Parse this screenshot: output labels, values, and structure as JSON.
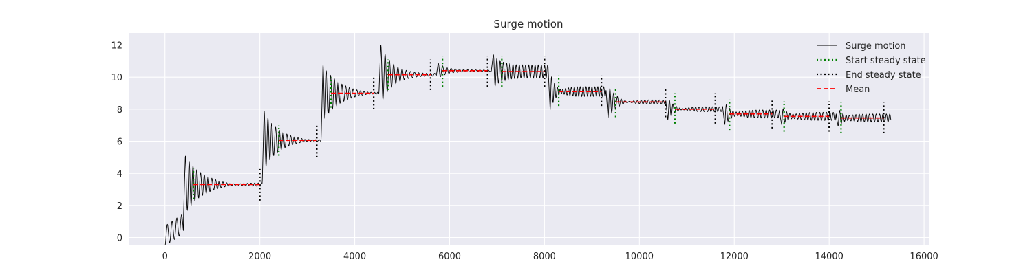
{
  "chart_data": {
    "type": "line",
    "title": "Surge motion",
    "xlabel": "",
    "ylabel": "",
    "xlim": [
      -750,
      16100
    ],
    "ylim": [
      -0.45,
      12.75
    ],
    "x_ticks": [
      0,
      2000,
      4000,
      6000,
      8000,
      10000,
      12000,
      14000,
      16000
    ],
    "y_ticks": [
      0,
      2,
      4,
      6,
      8,
      10,
      12
    ],
    "grid": true,
    "legend_position": "top-right",
    "colors": {
      "background": "#eaeaf2",
      "grid": "#ffffff",
      "surge": "#000000",
      "start": "#008000",
      "end": "#000000",
      "mean": "#ff0000"
    },
    "legend": [
      {
        "label": "Surge motion",
        "style": "solid",
        "color": "#000000"
      },
      {
        "label": "Start steady state",
        "style": "dotted",
        "color": "#008000"
      },
      {
        "label": "End steady state",
        "style": "dotted",
        "color": "#000000"
      },
      {
        "label": "Mean",
        "style": "dashed",
        "color": "#ff0000"
      }
    ],
    "series": [
      {
        "name": "Surge motion",
        "start_x": 0,
        "end_x": 15300,
        "initial_segment": {
          "x_start": 0,
          "x_end": 400,
          "y_start": 0.1,
          "y_mid": 0.9,
          "amplitude": 0.65,
          "period": 100
        },
        "steps": [
          {
            "x_step": 390,
            "y_before": 1.2,
            "peak": 5.2,
            "y_mean": 3.3,
            "decay_amp": 1.6,
            "period": 80,
            "decay_len": 700,
            "residual_amp": 0.1
          },
          {
            "x_step": 2050,
            "y_before": 3.4,
            "peak": 8.0,
            "y_mean": 6.05,
            "decay_amp": 1.3,
            "period": 80,
            "decay_len": 600,
            "residual_amp": 0.08
          },
          {
            "x_step": 3290,
            "y_before": 6.1,
            "peak": 10.9,
            "y_mean": 9.0,
            "decay_amp": 1.1,
            "period": 80,
            "decay_len": 650,
            "residual_amp": 0.1
          },
          {
            "x_step": 4510,
            "y_before": 9.0,
            "peak": 12.1,
            "y_mean": 10.15,
            "decay_amp": 0.9,
            "period": 90,
            "decay_len": 500,
            "residual_amp": 0.1
          },
          {
            "x_step": 5720,
            "y_before": 10.1,
            "peak": 10.9,
            "y_mean": 10.4,
            "decay_amp": 0.45,
            "period": 90,
            "decay_len": 400,
            "residual_amp": 0.05
          },
          {
            "x_step": 6880,
            "y_before": 10.4,
            "peak": 11.4,
            "y_mean": 10.35,
            "decay_amp": 0.6,
            "period": 70,
            "decay_len": 300,
            "residual_amp": 0.4
          },
          {
            "x_step": 8080,
            "y_before": 10.3,
            "peak": 7.9,
            "y_mean": 9.1,
            "decay_amp": 0.8,
            "period": 65,
            "decay_len": 300,
            "residual_amp": 0.3
          },
          {
            "x_step": 9300,
            "y_before": 9.1,
            "peak": 7.4,
            "y_mean": 8.45,
            "decay_amp": 0.7,
            "period": 80,
            "decay_len": 500,
            "residual_amp": 0.12
          },
          {
            "x_step": 10560,
            "y_before": 8.45,
            "peak": 7.3,
            "y_mean": 8.0,
            "decay_amp": 0.5,
            "period": 75,
            "decay_len": 400,
            "residual_amp": 0.15
          },
          {
            "x_step": 11760,
            "y_before": 8.0,
            "peak": 7.0,
            "y_mean": 7.7,
            "decay_amp": 0.6,
            "period": 75,
            "decay_len": 400,
            "residual_amp": 0.25
          },
          {
            "x_step": 12960,
            "y_before": 7.7,
            "peak": 7.0,
            "y_mean": 7.55,
            "decay_amp": 0.5,
            "period": 75,
            "decay_len": 400,
            "residual_amp": 0.25
          },
          {
            "x_step": 14150,
            "y_before": 7.55,
            "peak": 6.9,
            "y_mean": 7.45,
            "decay_amp": 0.5,
            "period": 75,
            "decay_len": 300,
            "residual_amp": 0.25
          }
        ]
      },
      {
        "name": "Start steady state",
        "lines": [
          {
            "x": 600,
            "ymin": 2.4,
            "ymax": 4.3
          },
          {
            "x": 2400,
            "ymin": 5.1,
            "ymax": 7.0
          },
          {
            "x": 3500,
            "ymin": 8.1,
            "ymax": 10.0
          },
          {
            "x": 4700,
            "ymin": 9.2,
            "ymax": 11.1
          },
          {
            "x": 5850,
            "ymin": 9.4,
            "ymax": 11.3
          },
          {
            "x": 7100,
            "ymin": 9.4,
            "ymax": 11.3
          },
          {
            "x": 8300,
            "ymin": 8.2,
            "ymax": 10.1
          },
          {
            "x": 9500,
            "ymin": 7.5,
            "ymax": 9.4
          },
          {
            "x": 10750,
            "ymin": 7.1,
            "ymax": 9.0
          },
          {
            "x": 11900,
            "ymin": 6.7,
            "ymax": 8.6
          },
          {
            "x": 13050,
            "ymin": 6.6,
            "ymax": 8.5
          },
          {
            "x": 14250,
            "ymin": 6.5,
            "ymax": 8.4
          }
        ]
      },
      {
        "name": "End steady state",
        "lines": [
          {
            "x": 2000,
            "ymin": 2.3,
            "ymax": 4.3
          },
          {
            "x": 3200,
            "ymin": 5.0,
            "ymax": 7.0
          },
          {
            "x": 4400,
            "ymin": 8.0,
            "ymax": 10.0
          },
          {
            "x": 5600,
            "ymin": 9.2,
            "ymax": 11.1
          },
          {
            "x": 6800,
            "ymin": 9.4,
            "ymax": 11.3
          },
          {
            "x": 8000,
            "ymin": 9.4,
            "ymax": 11.3
          },
          {
            "x": 9200,
            "ymin": 8.2,
            "ymax": 10.1
          },
          {
            "x": 10550,
            "ymin": 7.5,
            "ymax": 9.4
          },
          {
            "x": 11600,
            "ymin": 7.1,
            "ymax": 9.0
          },
          {
            "x": 12800,
            "ymin": 6.8,
            "ymax": 8.6
          },
          {
            "x": 14000,
            "ymin": 6.6,
            "ymax": 8.5
          },
          {
            "x": 15150,
            "ymin": 6.5,
            "ymax": 8.4
          }
        ]
      },
      {
        "name": "Mean",
        "segments": [
          {
            "x_start": 600,
            "x_end": 2000,
            "y": 3.3
          },
          {
            "x_start": 2400,
            "x_end": 3200,
            "y": 6.05
          },
          {
            "x_start": 3500,
            "x_end": 4400,
            "y": 9.0
          },
          {
            "x_start": 4700,
            "x_end": 5600,
            "y": 10.15
          },
          {
            "x_start": 5850,
            "x_end": 6800,
            "y": 10.4
          },
          {
            "x_start": 7100,
            "x_end": 8000,
            "y": 10.35
          },
          {
            "x_start": 8300,
            "x_end": 9200,
            "y": 9.1
          },
          {
            "x_start": 9500,
            "x_end": 10550,
            "y": 8.45
          },
          {
            "x_start": 10750,
            "x_end": 11600,
            "y": 8.0
          },
          {
            "x_start": 11900,
            "x_end": 12800,
            "y": 7.7
          },
          {
            "x_start": 13050,
            "x_end": 14000,
            "y": 7.55
          },
          {
            "x_start": 14250,
            "x_end": 15150,
            "y": 7.45
          }
        ]
      }
    ]
  }
}
